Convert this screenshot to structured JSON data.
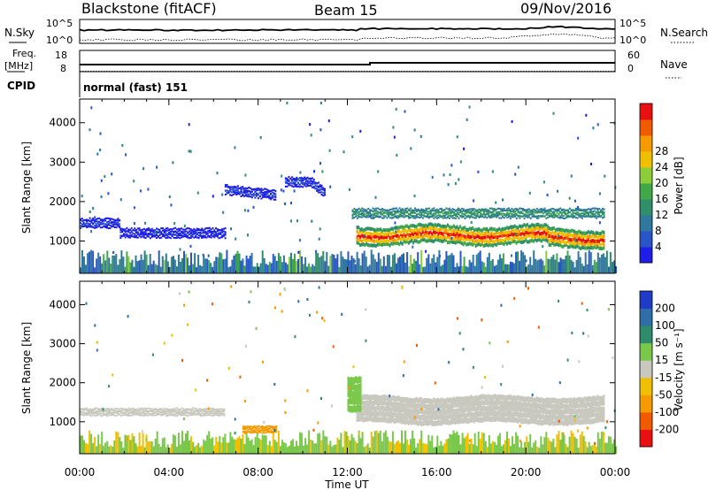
{
  "header": {
    "left": "Blackstone (fitACF)",
    "center": "Beam 15",
    "right": "09/Nov/2016"
  },
  "labels": {
    "nsky": "N.Sky",
    "nsearch": "N.Search",
    "freq": "Freq.",
    "freq_unit": "[MHz]",
    "nave": "Nave",
    "cpid": "CPID",
    "cpid_value": "normal (fast) 151",
    "noise_tick_hi": "10^5",
    "noise_tick_lo": "10^0",
    "freq_ticks": [
      "18",
      "8"
    ],
    "nave_ticks": [
      "60",
      "0"
    ]
  },
  "colors": {
    "power_bands": [
      "#1e1ee6",
      "#2a55c8",
      "#2f78a0",
      "#2e8f6a",
      "#41a84a",
      "#8ccd3a",
      "#f0c000",
      "#f59a00",
      "#f25a00",
      "#e81010"
    ],
    "velocity_bands": [
      "#1e3cc8",
      "#2f6ea8",
      "#2e8c6a",
      "#7ac84a",
      "#c8c8bf",
      "#f0c000",
      "#f59a00",
      "#f25a00",
      "#e81010"
    ]
  },
  "chart_data": [
    {
      "type": "heatmap",
      "name": "power",
      "xlabel": "Time UT",
      "ylabel": "Slant Range [km]",
      "x_ticks": [
        "00:00",
        "04:00",
        "08:00",
        "12:00",
        "16:00",
        "20:00",
        "00:00"
      ],
      "x_range_hours": [
        0,
        24
      ],
      "y_ticks": [
        1000,
        2000,
        3000,
        4000
      ],
      "ylim": [
        180,
        4600
      ],
      "colorbar_label": "Power [dB]",
      "colorbar_ticks": [
        4,
        8,
        12,
        16,
        20,
        24,
        28
      ],
      "colorbar_range": [
        0,
        30
      ],
      "features": [
        {
          "desc": "main echo band",
          "t_start": 12.4,
          "t_end": 23.5,
          "range_center_km": 1150,
          "peak_db": 30
        },
        {
          "desc": "upper echo layer",
          "t_start": 12.2,
          "t_end": 23.5,
          "range_center_km": 1700,
          "peak_db": 14
        },
        {
          "desc": "early morning patch",
          "t_start": 0.0,
          "t_end": 1.8,
          "range_center_km": 1450,
          "peak_db": 6
        },
        {
          "desc": "mid-morning band",
          "t_start": 1.8,
          "t_end": 6.5,
          "range_center_km": 1200,
          "peak_db": 5
        },
        {
          "desc": "dawn patch",
          "t_start": 6.5,
          "t_end": 8.8,
          "range_center_km": 2300,
          "peak_db": 6
        },
        {
          "desc": "pre-noon patch",
          "t_start": 9.2,
          "t_end": 11.0,
          "range_center_km": 2500,
          "peak_db": 6
        },
        {
          "desc": "ground scatter",
          "t_start": 0.0,
          "t_end": 24.0,
          "range_center_km": 350,
          "peak_db": 12
        }
      ]
    },
    {
      "type": "heatmap",
      "name": "velocity",
      "xlabel": "Time UT",
      "ylabel": "Slant Range [km]",
      "x_ticks": [
        "00:00",
        "04:00",
        "08:00",
        "12:00",
        "16:00",
        "20:00",
        "00:00"
      ],
      "x_range_hours": [
        0,
        24
      ],
      "y_ticks": [
        1000,
        2000,
        3000,
        4000
      ],
      "ylim": [
        180,
        4600
      ],
      "colorbar_label": "Velocity [m s⁻¹]",
      "colorbar_ticks": [
        200,
        100,
        50,
        15,
        -15,
        -50,
        -100,
        -200
      ],
      "features": [
        {
          "desc": "main echo band",
          "t_start": 12.4,
          "t_end": 23.5,
          "range_center_km": 1300,
          "velocity_ms": 0
        },
        {
          "desc": "onset edge",
          "t_start": 12.0,
          "t_end": 12.6,
          "range_center_km": 1700,
          "velocity_ms": 30
        },
        {
          "desc": "morning band",
          "t_start": 0.0,
          "t_end": 6.5,
          "range_center_km": 1250,
          "velocity_ms": 0
        },
        {
          "desc": "negative-velocity patch",
          "t_start": 7.3,
          "t_end": 8.8,
          "range_center_km": 800,
          "velocity_ms": -60
        },
        {
          "desc": "ground scatter",
          "t_start": 0.0,
          "t_end": 24.0,
          "range_center_km": 350,
          "velocity_ms": 20
        }
      ]
    }
  ]
}
